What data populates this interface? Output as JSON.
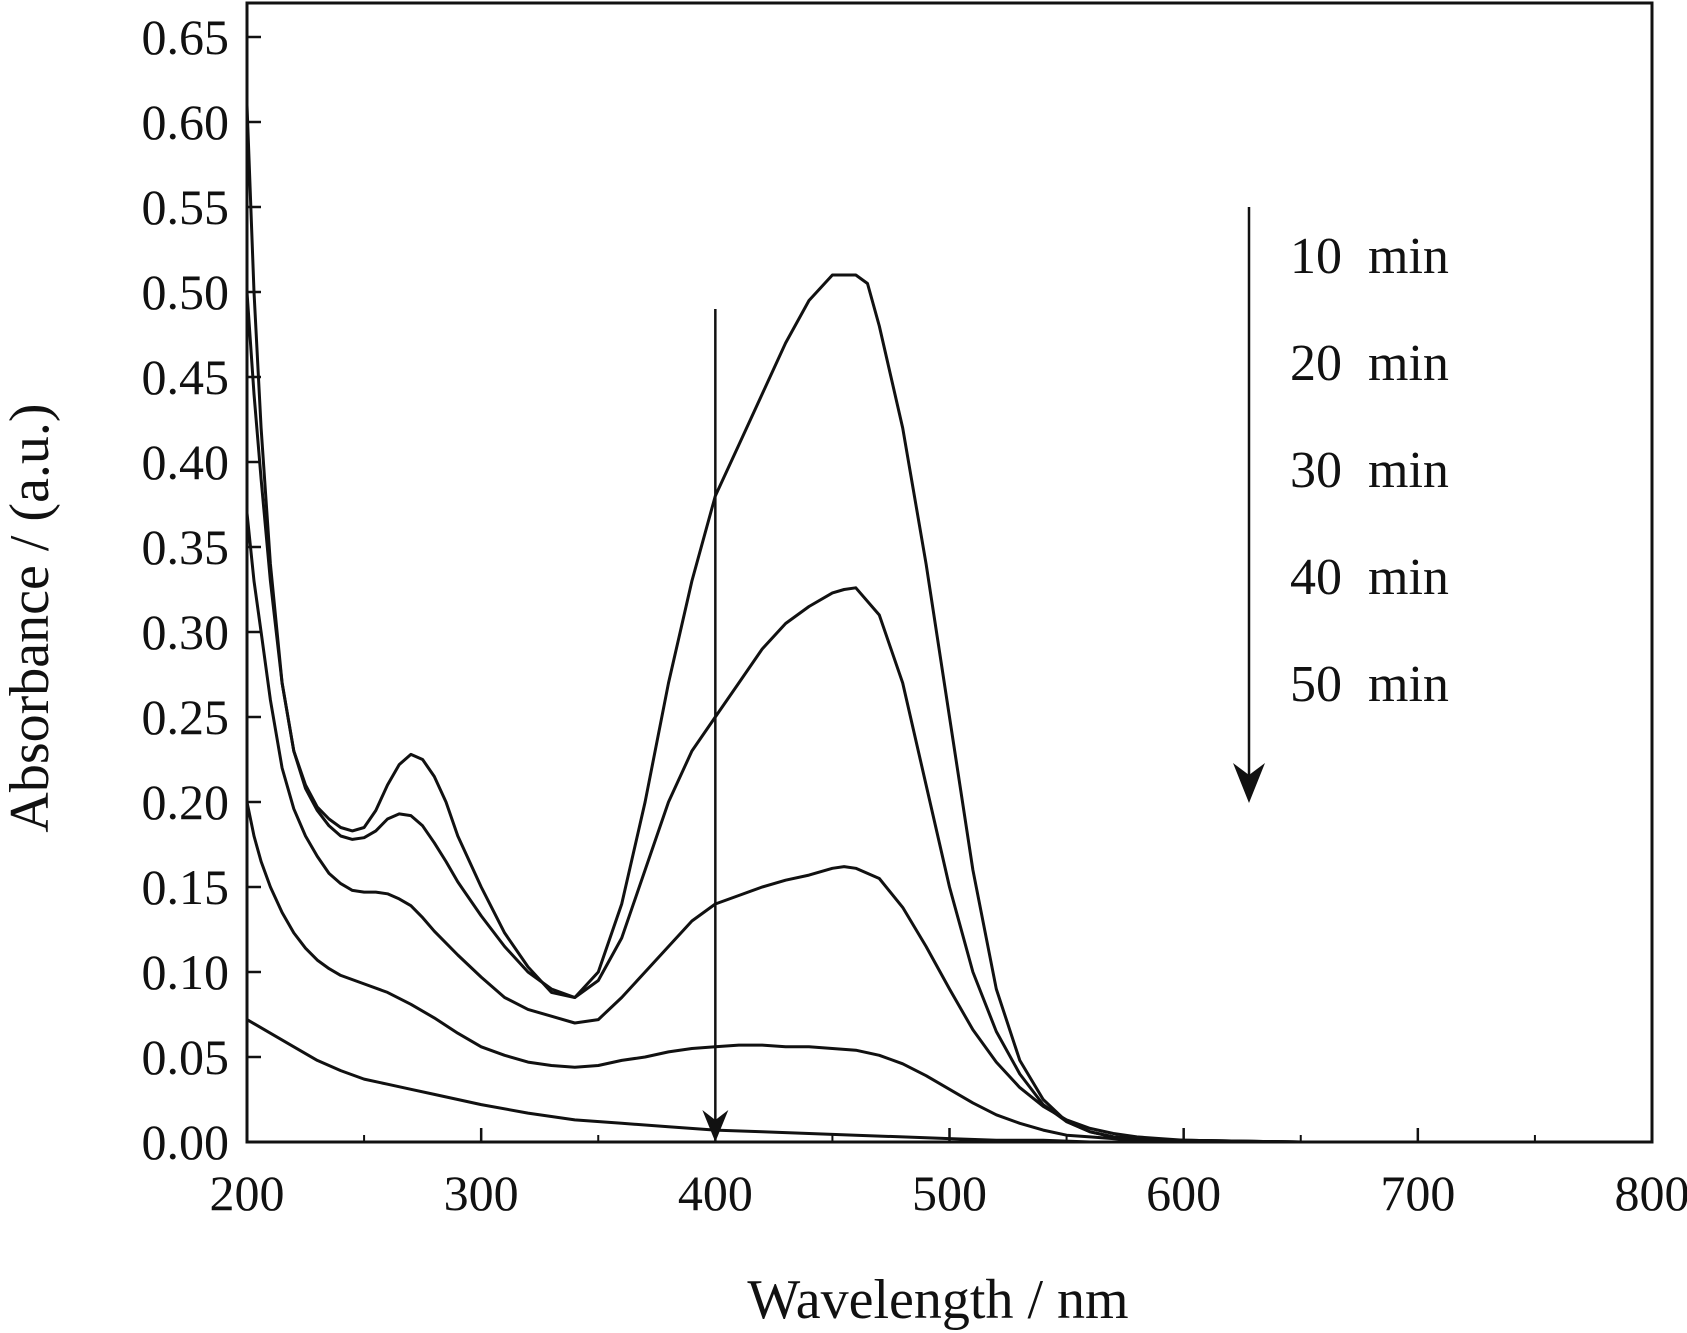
{
  "chart_data": {
    "type": "line",
    "title": "",
    "xlabel": "Wavelength / nm",
    "ylabel": "Absorbance / (a.u.)",
    "xlim": [
      200,
      800
    ],
    "ylim": [
      0.0,
      0.67
    ],
    "x_ticks": [
      200,
      300,
      400,
      500,
      600,
      700,
      800
    ],
    "x_tick_labels": [
      "200",
      "300",
      "400",
      "500",
      "600",
      "700",
      "800"
    ],
    "y_ticks": [
      0.0,
      0.05,
      0.1,
      0.15,
      0.2,
      0.25,
      0.3,
      0.35,
      0.4,
      0.45,
      0.5,
      0.55,
      0.6,
      0.65
    ],
    "y_tick_labels": [
      "0.00",
      "0.05",
      "0.10",
      "0.15",
      "0.20",
      "0.25",
      "0.30",
      "0.35",
      "0.40",
      "0.45",
      "0.50",
      "0.55",
      "0.60",
      "0.65"
    ],
    "grid": false,
    "legend": {
      "placement": "top-right",
      "entries": [
        "10  min",
        "20  min",
        "30  min",
        "40  min",
        "50  min"
      ],
      "arrow_direction": "down"
    },
    "annotations": [
      {
        "type": "arrow",
        "direction": "down",
        "x": 400,
        "y_start": 0.49,
        "y_end": 0.0
      }
    ],
    "series": [
      {
        "x": [
          200,
          203,
          206,
          210,
          215,
          220,
          225,
          230,
          235,
          240,
          245,
          250,
          255,
          260,
          265,
          270,
          275,
          280,
          285,
          290,
          300,
          310,
          320,
          330,
          340,
          350,
          360,
          370,
          380,
          390,
          400,
          410,
          420,
          430,
          440,
          450,
          460,
          465,
          470,
          480,
          490,
          500,
          510,
          520,
          530,
          540,
          550,
          560,
          570,
          580,
          590,
          600,
          650,
          700,
          750,
          800
        ],
        "y": [
          0.61,
          0.5,
          0.42,
          0.34,
          0.27,
          0.23,
          0.21,
          0.197,
          0.19,
          0.185,
          0.183,
          0.185,
          0.195,
          0.21,
          0.222,
          0.228,
          0.225,
          0.215,
          0.2,
          0.18,
          0.15,
          0.123,
          0.103,
          0.088,
          0.085,
          0.1,
          0.14,
          0.2,
          0.27,
          0.33,
          0.38,
          0.41,
          0.44,
          0.47,
          0.495,
          0.51,
          0.51,
          0.505,
          0.48,
          0.42,
          0.34,
          0.25,
          0.16,
          0.09,
          0.048,
          0.025,
          0.012,
          0.006,
          0.003,
          0.002,
          0.001,
          0.001,
          0.0,
          0.0,
          0.0,
          0.0
        ]
      },
      {
        "x": [
          200,
          203,
          206,
          210,
          215,
          220,
          225,
          230,
          235,
          240,
          245,
          250,
          255,
          260,
          265,
          270,
          275,
          280,
          285,
          290,
          300,
          310,
          320,
          330,
          340,
          350,
          360,
          370,
          380,
          390,
          400,
          410,
          420,
          430,
          440,
          450,
          455,
          460,
          470,
          480,
          490,
          500,
          510,
          520,
          530,
          540,
          550,
          560,
          570,
          580,
          590,
          600,
          650,
          700,
          750,
          800
        ],
        "y": [
          0.5,
          0.44,
          0.39,
          0.33,
          0.27,
          0.23,
          0.208,
          0.195,
          0.186,
          0.18,
          0.178,
          0.179,
          0.183,
          0.19,
          0.193,
          0.192,
          0.186,
          0.176,
          0.165,
          0.153,
          0.133,
          0.115,
          0.1,
          0.09,
          0.085,
          0.095,
          0.12,
          0.16,
          0.2,
          0.23,
          0.25,
          0.27,
          0.29,
          0.305,
          0.315,
          0.323,
          0.325,
          0.326,
          0.31,
          0.27,
          0.21,
          0.15,
          0.1,
          0.065,
          0.04,
          0.022,
          0.012,
          0.006,
          0.003,
          0.002,
          0.001,
          0.001,
          0.0,
          0.0,
          0.0,
          0.0
        ]
      },
      {
        "x": [
          200,
          203,
          206,
          210,
          215,
          220,
          225,
          230,
          235,
          240,
          245,
          250,
          255,
          260,
          265,
          270,
          275,
          280,
          290,
          300,
          310,
          320,
          330,
          340,
          350,
          360,
          370,
          380,
          390,
          400,
          410,
          420,
          430,
          440,
          450,
          455,
          460,
          470,
          480,
          490,
          500,
          510,
          520,
          530,
          540,
          550,
          560,
          570,
          580,
          590,
          600,
          650,
          700,
          750,
          800
        ],
        "y": [
          0.37,
          0.33,
          0.3,
          0.26,
          0.22,
          0.196,
          0.18,
          0.168,
          0.158,
          0.152,
          0.148,
          0.147,
          0.147,
          0.146,
          0.143,
          0.139,
          0.132,
          0.124,
          0.11,
          0.097,
          0.085,
          0.078,
          0.074,
          0.07,
          0.072,
          0.085,
          0.1,
          0.115,
          0.13,
          0.14,
          0.145,
          0.15,
          0.154,
          0.157,
          0.161,
          0.162,
          0.161,
          0.155,
          0.138,
          0.115,
          0.09,
          0.066,
          0.047,
          0.032,
          0.021,
          0.013,
          0.008,
          0.005,
          0.003,
          0.002,
          0.001,
          0.0,
          0.0,
          0.0,
          0.0
        ]
      },
      {
        "x": [
          200,
          203,
          206,
          210,
          215,
          220,
          225,
          230,
          235,
          240,
          250,
          260,
          270,
          280,
          290,
          300,
          310,
          320,
          330,
          340,
          350,
          360,
          370,
          380,
          390,
          400,
          410,
          420,
          430,
          440,
          450,
          460,
          470,
          480,
          490,
          500,
          510,
          520,
          530,
          540,
          550,
          560,
          570,
          580,
          590,
          600,
          650,
          700,
          750,
          800
        ],
        "y": [
          0.2,
          0.18,
          0.165,
          0.15,
          0.135,
          0.123,
          0.114,
          0.107,
          0.102,
          0.098,
          0.093,
          0.088,
          0.081,
          0.073,
          0.064,
          0.056,
          0.051,
          0.047,
          0.045,
          0.044,
          0.045,
          0.048,
          0.05,
          0.053,
          0.055,
          0.056,
          0.057,
          0.057,
          0.056,
          0.056,
          0.055,
          0.054,
          0.051,
          0.046,
          0.039,
          0.031,
          0.023,
          0.016,
          0.011,
          0.007,
          0.004,
          0.003,
          0.002,
          0.001,
          0.001,
          0.0,
          0.0,
          0.0,
          0.0,
          0.0
        ]
      },
      {
        "x": [
          200,
          210,
          220,
          230,
          240,
          250,
          260,
          270,
          280,
          290,
          300,
          320,
          340,
          360,
          380,
          400,
          420,
          440,
          460,
          480,
          500,
          520,
          540,
          560,
          580,
          600,
          650,
          700,
          750,
          800
        ],
        "y": [
          0.072,
          0.064,
          0.056,
          0.048,
          0.042,
          0.037,
          0.034,
          0.031,
          0.028,
          0.025,
          0.022,
          0.017,
          0.013,
          0.011,
          0.009,
          0.007,
          0.006,
          0.005,
          0.004,
          0.003,
          0.002,
          0.001,
          0.001,
          0.0,
          0.0,
          0.0,
          0.0,
          0.0,
          0.0,
          0.0
        ]
      }
    ]
  }
}
